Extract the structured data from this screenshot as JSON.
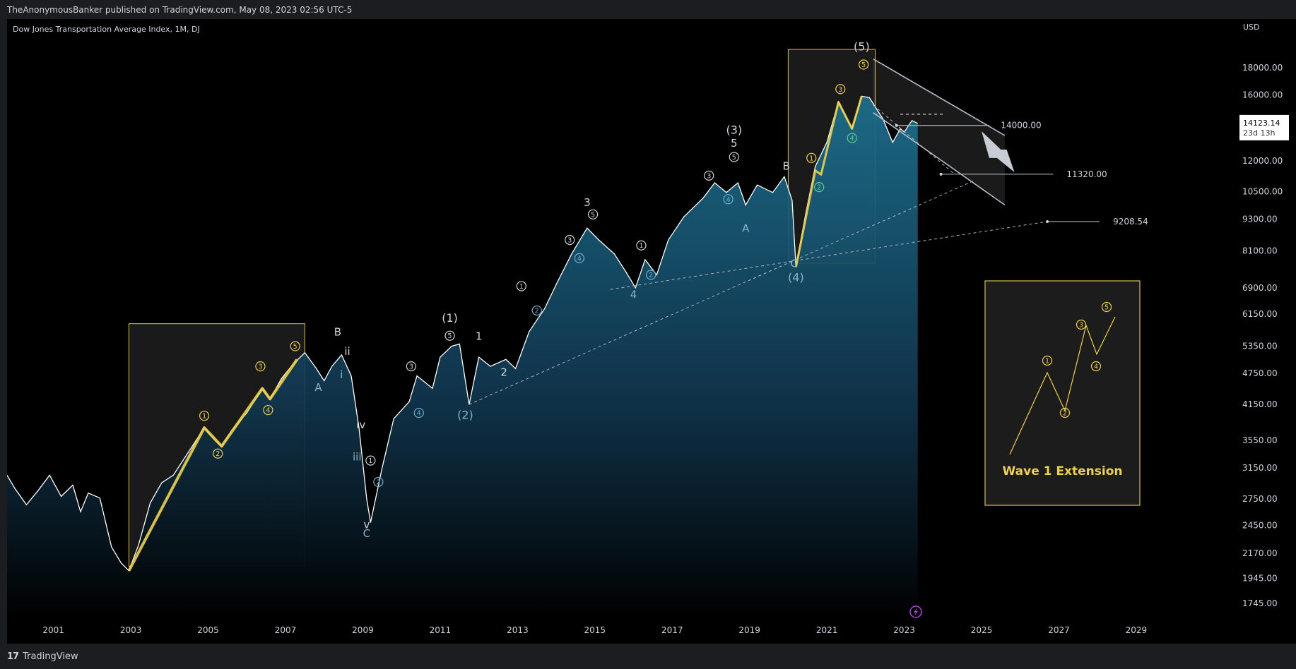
{
  "header": {
    "publisher": "TheAnonymousBanker published on TradingView.com, May 08, 2023 02:56 UTC-5"
  },
  "symbol": "Dow Jones Transportation Average Index, 1M, DJ",
  "footer": {
    "brand": "TradingView",
    "logo_text": "17"
  },
  "colors": {
    "background": "#000000",
    "price_line": "#ffffff",
    "area_top": "#1c6e8c",
    "highlight": "#f0d24a",
    "wave_box_border": "#d8c04a",
    "channel": "#b8bcc8",
    "label": "#d1d4dc",
    "label_blue": "#8ab4c8",
    "event_icon": "#b040e0"
  },
  "chart_data": {
    "type": "line",
    "title": "Dow Jones Transportation Average Index, 1M, DJ",
    "currency": "USD",
    "y_scale": "log",
    "ylim": [
      1640,
      20800
    ],
    "xlim": [
      1999.8,
      2030.5
    ],
    "y_ticks": [
      18000,
      16000,
      14000,
      12000,
      10500,
      9300,
      8100,
      6900,
      6150,
      5350,
      4750,
      4150,
      3550,
      3150,
      2750,
      2450,
      2170,
      1945,
      1745
    ],
    "y_tick_labels": [
      "18000.00",
      "16000.00",
      "14000.00",
      "12000.00",
      "10500.00",
      "9300.00",
      "8100.00",
      "6900.00",
      "6150.00",
      "5350.00",
      "4750.00",
      "4150.00",
      "3550.00",
      "3150.00",
      "2750.00",
      "2450.00",
      "2170.00",
      "1945.00",
      "1745.00"
    ],
    "x_ticks": [
      2001,
      2003,
      2005,
      2007,
      2009,
      2011,
      2013,
      2015,
      2017,
      2019,
      2021,
      2023,
      2025,
      2027,
      2029
    ],
    "x_tick_labels": [
      "2001",
      "2003",
      "2005",
      "2007",
      "2009",
      "2011",
      "2013",
      "2015",
      "2017",
      "2019",
      "2021",
      "2023",
      "2025",
      "2027",
      "2029"
    ],
    "current_price": {
      "value": 14123.14,
      "label": "14123.14",
      "countdown": "23d 13h"
    },
    "series": [
      {
        "x": [
          1999.8,
          2000.0,
          2000.3,
          2000.6,
          2000.9,
          2001.2,
          2001.5,
          2001.7,
          2001.9,
          2002.2,
          2002.5,
          2002.75,
          2002.95,
          2003.2,
          2003.5,
          2003.8,
          2004.1,
          2004.5,
          2004.9,
          2005.2,
          2005.35,
          2005.6,
          2006.0,
          2006.4,
          2006.6,
          2006.9,
          2007.2,
          2007.5,
          2007.8,
          2008.0,
          2008.2,
          2008.45,
          2008.7,
          2008.9,
          2009.1,
          2009.2,
          2009.5,
          2009.8,
          2010.2,
          2010.4,
          2010.8,
          2011.0,
          2011.3,
          2011.5,
          2011.75,
          2012.0,
          2012.3,
          2012.7,
          2012.95,
          2013.3,
          2013.7,
          2014.0,
          2014.4,
          2014.8,
          2015.1,
          2015.5,
          2015.8,
          2016.05,
          2016.3,
          2016.6,
          2016.9,
          2017.3,
          2017.8,
          2018.1,
          2018.4,
          2018.7,
          2018.9,
          2019.2,
          2019.6,
          2019.9,
          2020.1,
          2020.2,
          2020.45,
          2020.7,
          2021.0,
          2021.3,
          2021.65,
          2021.9,
          2022.1,
          2022.45,
          2022.7,
          2022.9,
          2023.0,
          2023.2,
          2023.35
        ],
        "y": [
          3050,
          2880,
          2680,
          2850,
          3050,
          2780,
          2920,
          2600,
          2820,
          2760,
          2230,
          2080,
          2010,
          2250,
          2700,
          2950,
          3050,
          3380,
          3750,
          3530,
          3460,
          3700,
          4000,
          4450,
          4250,
          4650,
          4950,
          5200,
          4850,
          4600,
          4900,
          5150,
          4700,
          3750,
          2750,
          2480,
          3150,
          3900,
          4200,
          4700,
          4450,
          5100,
          5350,
          5400,
          4150,
          5100,
          4900,
          5050,
          4850,
          5700,
          6300,
          7000,
          8000,
          8950,
          8500,
          8000,
          7400,
          6900,
          7800,
          7300,
          8500,
          9400,
          10200,
          10900,
          10450,
          10900,
          9900,
          10800,
          10450,
          11200,
          10100,
          7550,
          9500,
          11700,
          13000,
          15500,
          13800,
          15900,
          15800,
          14400,
          13000,
          13800,
          13600,
          14300,
          14123
        ]
      }
    ],
    "wave_labels": [
      {
        "text": "(1)",
        "x": 2011.25,
        "y": 5950
      },
      {
        "text": "(2)",
        "x": 2011.65,
        "y": 3900
      },
      {
        "text": "(3)",
        "x": 2018.6,
        "y": 13500
      },
      {
        "text": "(4)",
        "x": 2020.2,
        "y": 7100
      },
      {
        "text": "(5)",
        "x": 2021.9,
        "y": 19400
      },
      {
        "text": "1",
        "x": 2012.0,
        "y": 5500
      },
      {
        "text": "2",
        "x": 2012.65,
        "y": 4700
      },
      {
        "text": "3",
        "x": 2014.8,
        "y": 9850
      },
      {
        "text": "4",
        "x": 2016.0,
        "y": 6600
      },
      {
        "text": "5",
        "x": 2018.6,
        "y": 12750
      },
      {
        "text": "A",
        "x": 2007.85,
        "y": 4400
      },
      {
        "text": "B",
        "x": 2008.35,
        "y": 5600
      },
      {
        "text": "C",
        "x": 2009.1,
        "y": 2330
      },
      {
        "text": "i",
        "x": 2008.45,
        "y": 4650
      },
      {
        "text": "ii",
        "x": 2008.6,
        "y": 5150
      },
      {
        "text": "iii",
        "x": 2008.85,
        "y": 3250
      },
      {
        "text": "iv",
        "x": 2008.95,
        "y": 3740
      },
      {
        "text": "v",
        "x": 2009.1,
        "y": 2420
      },
      {
        "text": "A",
        "x": 2018.9,
        "y": 8800
      },
      {
        "text": "B",
        "x": 2019.95,
        "y": 11550
      },
      {
        "text": "C",
        "x": 2020.15,
        "y": 7550
      }
    ],
    "circled_labels": [
      {
        "text": "1",
        "x": 2004.9,
        "y": 3950,
        "color": "yellow"
      },
      {
        "text": "2",
        "x": 2005.25,
        "y": 3350,
        "color": "yellow"
      },
      {
        "text": "3",
        "x": 2006.35,
        "y": 4900,
        "color": "yellow"
      },
      {
        "text": "4",
        "x": 2006.55,
        "y": 4050,
        "color": "yellow"
      },
      {
        "text": "5",
        "x": 2007.25,
        "y": 5350,
        "color": "yellow"
      },
      {
        "text": "1",
        "x": 2009.2,
        "y": 3250,
        "color": "white"
      },
      {
        "text": "2",
        "x": 2009.4,
        "y": 2960,
        "color": "blue"
      },
      {
        "text": "3",
        "x": 2010.25,
        "y": 4900,
        "color": "white"
      },
      {
        "text": "4",
        "x": 2010.45,
        "y": 4000,
        "color": "blue"
      },
      {
        "text": "5",
        "x": 2011.25,
        "y": 5600,
        "color": "white"
      },
      {
        "text": "1",
        "x": 2013.1,
        "y": 6950,
        "color": "white"
      },
      {
        "text": "2",
        "x": 2013.5,
        "y": 6250,
        "color": "blue"
      },
      {
        "text": "3",
        "x": 2014.35,
        "y": 8500,
        "color": "white"
      },
      {
        "text": "4",
        "x": 2014.6,
        "y": 7850,
        "color": "blue"
      },
      {
        "text": "5",
        "x": 2014.95,
        "y": 9500,
        "color": "white"
      },
      {
        "text": "1",
        "x": 2016.2,
        "y": 8300,
        "color": "white"
      },
      {
        "text": "2",
        "x": 2016.45,
        "y": 7300,
        "color": "blue"
      },
      {
        "text": "3",
        "x": 2017.95,
        "y": 11250,
        "color": "white"
      },
      {
        "text": "4",
        "x": 2018.45,
        "y": 10150,
        "color": "blue"
      },
      {
        "text": "5",
        "x": 2018.6,
        "y": 12200,
        "color": "white"
      },
      {
        "text": "1",
        "x": 2020.6,
        "y": 12150,
        "color": "yellow"
      },
      {
        "text": "2",
        "x": 2020.8,
        "y": 10700,
        "color": "green"
      },
      {
        "text": "3",
        "x": 2021.35,
        "y": 16400,
        "color": "yellow"
      },
      {
        "text": "4",
        "x": 2021.65,
        "y": 13250,
        "color": "green"
      },
      {
        "text": "5",
        "x": 2021.95,
        "y": 18250,
        "color": "yellow"
      }
    ],
    "price_levels": [
      {
        "label": "14000.00",
        "value": 14000
      },
      {
        "label": "11320.00",
        "value": 11320
      },
      {
        "label": "9208.54",
        "value": 9208.54
      }
    ],
    "inset": {
      "caption": "Wave 1 Extension",
      "circled": [
        "1",
        "2",
        "3",
        "4",
        "5"
      ]
    }
  }
}
